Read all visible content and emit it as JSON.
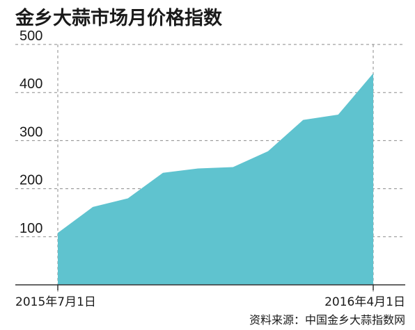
{
  "chart_data": {
    "type": "area",
    "title": "金乡大蒜市场月价格指数",
    "x": [
      "2015年7月1日",
      "",
      "",
      "",
      "",
      "",
      "",
      "",
      "",
      "2016年4月1日"
    ],
    "xtick_labels": [
      "2015年7月1日",
      "2016年4月1日"
    ],
    "values": [
      108,
      162,
      180,
      233,
      242,
      245,
      278,
      343,
      354,
      440
    ],
    "ylim": [
      0,
      500
    ],
    "yticks": [
      100,
      200,
      300,
      400,
      500
    ],
    "grid": true,
    "color": "#5fc3cf",
    "source": "资料来源：中国金乡大蒜指数网"
  }
}
